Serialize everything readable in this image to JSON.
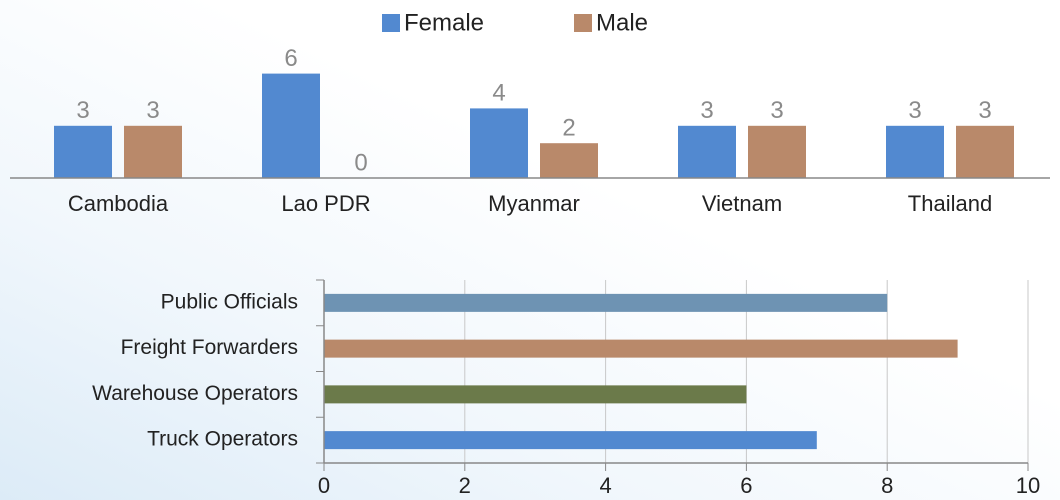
{
  "chart_data": [
    {
      "type": "bar",
      "categories": [
        "Cambodia",
        "Lao PDR",
        "Myanmar",
        "Vietnam",
        "Thailand"
      ],
      "series": [
        {
          "name": "Female",
          "color": "#5289d0",
          "values": [
            3,
            6,
            4,
            3,
            3
          ]
        },
        {
          "name": "Male",
          "color": "#b9896a",
          "values": [
            3,
            0,
            2,
            3,
            3
          ]
        }
      ],
      "legend": "top"
    },
    {
      "type": "hbar",
      "categories": [
        "Public Officials",
        "Freight Forwarders",
        "Warehouse Operators",
        "Truck Operators"
      ],
      "values": [
        8,
        9,
        6,
        7
      ],
      "colors": [
        "#6e93b3",
        "#b9896a",
        "#6b7a4a",
        "#5289d0"
      ],
      "xlim": [
        0,
        10
      ],
      "xticks": [
        0,
        2,
        4,
        6,
        8,
        10
      ],
      "grid": true
    }
  ]
}
